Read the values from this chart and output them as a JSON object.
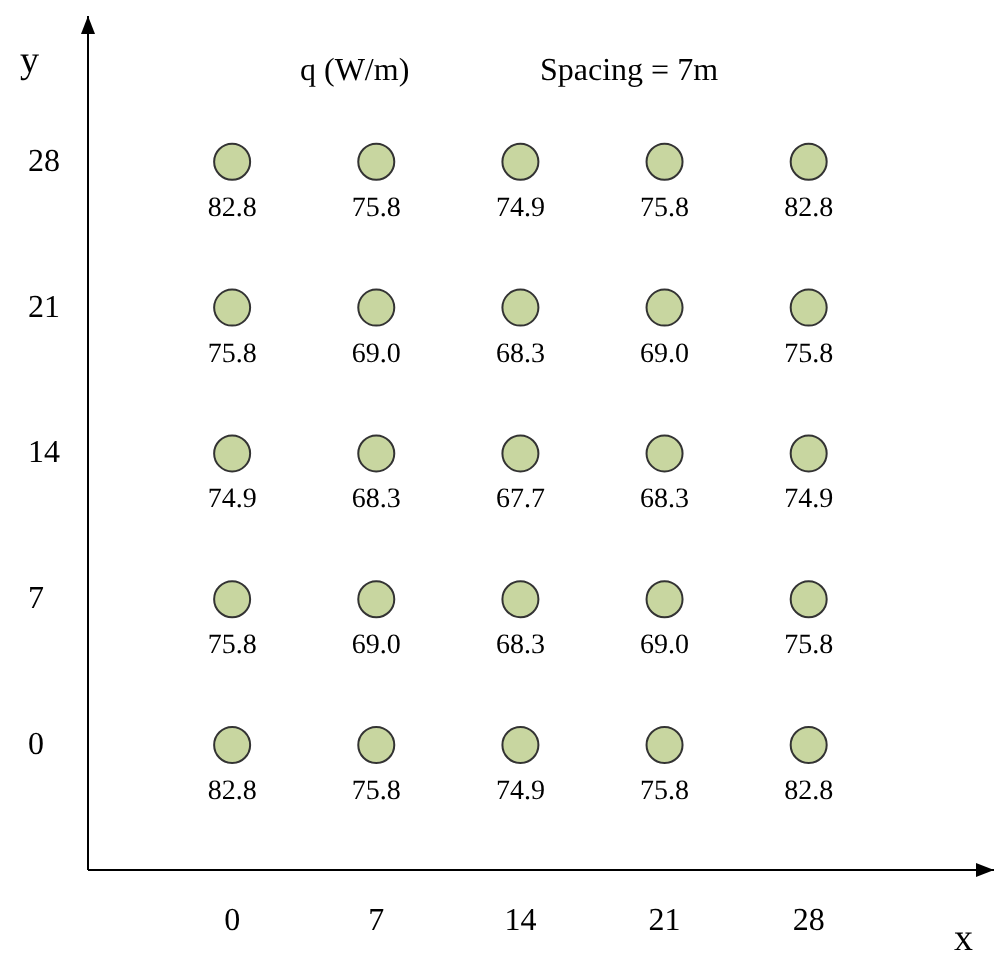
{
  "chart_data": {
    "type": "scatter",
    "xlabel": "x",
    "ylabel": "y",
    "xlim": [
      -7,
      37
    ],
    "ylim": [
      -6,
      35
    ],
    "xticks": [
      0,
      7,
      14,
      21,
      28
    ],
    "yticks": [
      0,
      7,
      14,
      21,
      28
    ],
    "marker": "circle",
    "series": [
      {
        "color": "#c8d6a0",
        "x": [
          0,
          7,
          14,
          21,
          28,
          0,
          7,
          14,
          21,
          28,
          0,
          7,
          14,
          21,
          28,
          0,
          7,
          14,
          21,
          28,
          0,
          7,
          14,
          21,
          28
        ],
        "values": [
          28,
          28,
          28,
          28,
          28,
          21,
          21,
          21,
          21,
          21,
          14,
          14,
          14,
          14,
          14,
          7,
          7,
          7,
          7,
          7,
          0,
          0,
          0,
          0,
          0
        ]
      }
    ],
    "annotations": [
      "q (W/m)",
      "Spacing = 7m",
      {
        "text": "82.8",
        "x": 0,
        "y": 28
      },
      {
        "text": "75.8",
        "x": 7,
        "y": 28
      },
      {
        "text": "74.9",
        "x": 14,
        "y": 28
      },
      {
        "text": "75.8",
        "x": 21,
        "y": 28
      },
      {
        "text": "82.8",
        "x": 28,
        "y": 28
      },
      {
        "text": "75.8",
        "x": 0,
        "y": 21
      },
      {
        "text": "69.0",
        "x": 7,
        "y": 21
      },
      {
        "text": "68.3",
        "x": 14,
        "y": 21
      },
      {
        "text": "69.0",
        "x": 21,
        "y": 21
      },
      {
        "text": "75.8",
        "x": 28,
        "y": 21
      },
      {
        "text": "74.9",
        "x": 0,
        "y": 14
      },
      {
        "text": "68.3",
        "x": 7,
        "y": 14
      },
      {
        "text": "67.7",
        "x": 14,
        "y": 14
      },
      {
        "text": "68.3",
        "x": 21,
        "y": 14
      },
      {
        "text": "74.9",
        "x": 28,
        "y": 14
      },
      {
        "text": "75.8",
        "x": 0,
        "y": 7
      },
      {
        "text": "69.0",
        "x": 7,
        "y": 7
      },
      {
        "text": "68.3",
        "x": 14,
        "y": 7
      },
      {
        "text": "69.0",
        "x": 21,
        "y": 7
      },
      {
        "text": "75.8",
        "x": 28,
        "y": 7
      },
      {
        "text": "82.8",
        "x": 0,
        "y": 0
      },
      {
        "text": "75.8",
        "x": 7,
        "y": 0
      },
      {
        "text": "74.9",
        "x": 14,
        "y": 0
      },
      {
        "text": "75.8",
        "x": 21,
        "y": 0
      },
      {
        "text": "82.8",
        "x": 28,
        "y": 0
      }
    ]
  }
}
